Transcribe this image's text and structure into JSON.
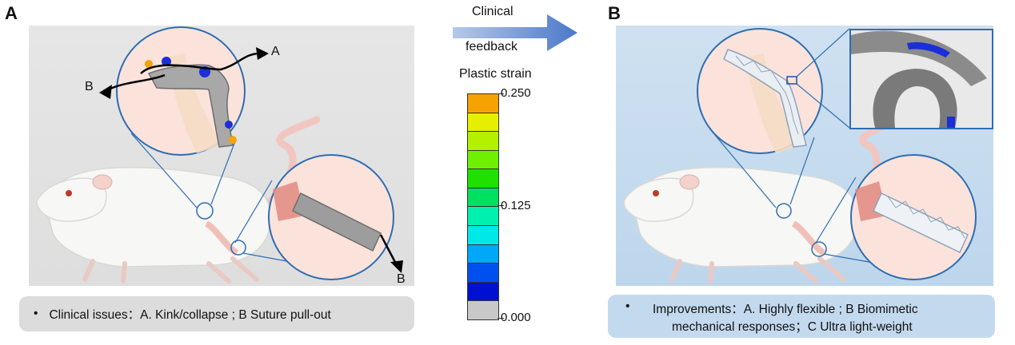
{
  "panel_a": {
    "letter": "A",
    "arrow_a_label": "A",
    "arrow_b_label_1": "B",
    "arrow_b_label_2": "B",
    "caption_bullet": "•",
    "caption": "Clinical issues：A. Kink/collapse ; B Suture pull-out"
  },
  "panel_b": {
    "letter": "B",
    "caption_bullet": "•",
    "caption_line1": "Improvements：A. Highly flexible ; B Biomimetic",
    "caption_line2": "mechanical responses；C Ultra light-weight"
  },
  "transition": {
    "line1": "Clinical",
    "line2": "feedback"
  },
  "legend": {
    "title": "Plastic strain",
    "max_label": "0.250",
    "mid_label": "0.125",
    "min_label": "0.000",
    "colors": [
      "#f5a300",
      "#e6ef00",
      "#b4f000",
      "#6ef000",
      "#20e000",
      "#00e060",
      "#00f0b0",
      "#00e8e8",
      "#00a8f8",
      "#0050f0",
      "#0010d0",
      "#c8c8c8"
    ]
  },
  "colors": {
    "panel_a_bg": "#e4e4e4",
    "panel_b_bg": "#c7dcef",
    "circle_stroke": "#2f6db2",
    "caption_a_bg": "#dcdcdc",
    "caption_b_bg": "#c3d9ee"
  }
}
